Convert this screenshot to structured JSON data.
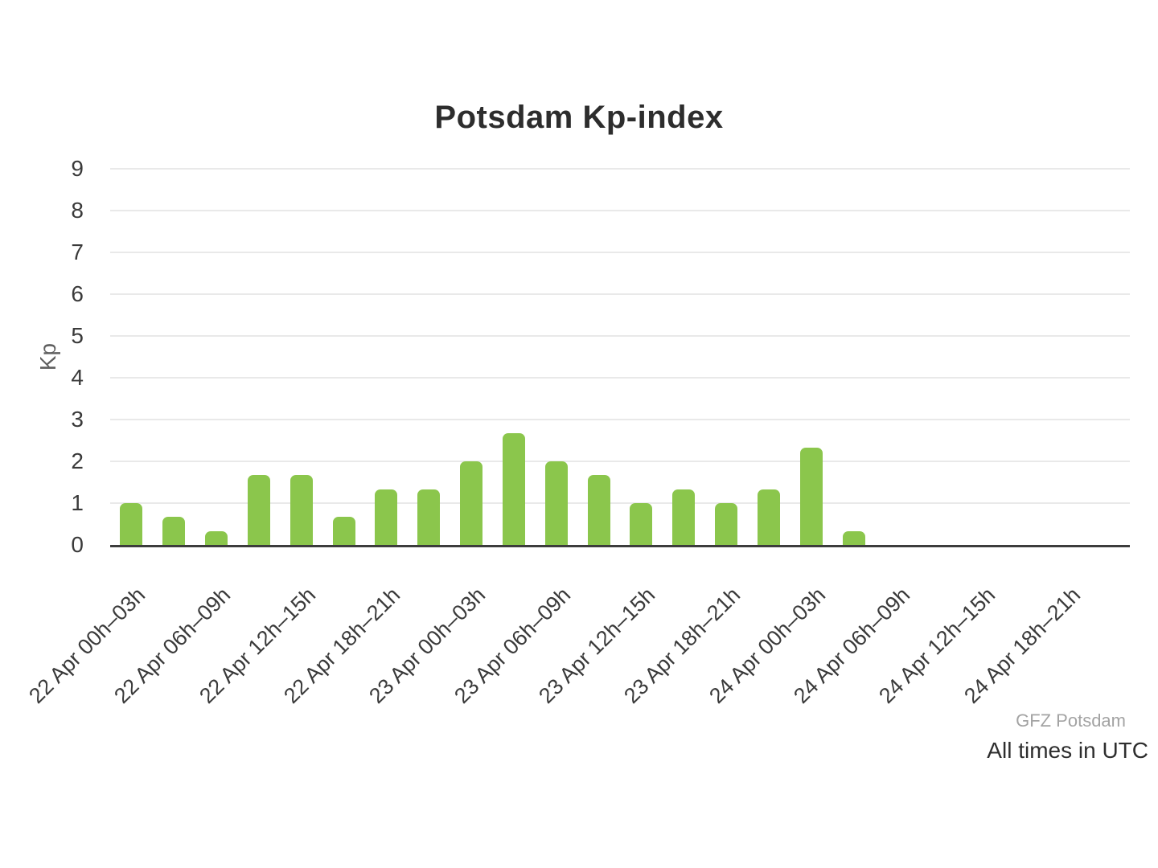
{
  "title": "Potsdam Kp-index",
  "footer": {
    "source": "GFZ Potsdam",
    "note": "All times in UTC"
  },
  "colors": {
    "bar": "#8bc64c",
    "grid": "#e9e9e9",
    "axis": "#3c3c3c",
    "tick_text": "#3a3a3a",
    "title_text": "#2d2d2d",
    "axis_title_text": "#5f5f5f",
    "source_text": "#a3a3a3",
    "note_text": "#2e2e2e"
  },
  "chart_data": {
    "type": "bar",
    "title": "Potsdam Kp-index",
    "xlabel": "",
    "ylabel": "Kp",
    "ylim": [
      0,
      9
    ],
    "yticks": [
      0,
      1,
      2,
      3,
      4,
      5,
      6,
      7,
      8,
      9
    ],
    "grid": true,
    "legend": false,
    "bar_color": "#8bc64c",
    "slot_count": 24,
    "values": [
      1,
      0.67,
      0.33,
      1.67,
      1.67,
      0.67,
      1.33,
      1.33,
      2,
      2.67,
      2,
      1.67,
      1,
      1.33,
      1,
      1.33,
      2.33,
      0.33,
      0,
      0,
      0,
      0,
      0,
      0
    ],
    "xtick_labels": [
      {
        "slot": 0,
        "label": "22 Apr 00h–03h"
      },
      {
        "slot": 2,
        "label": "22 Apr 06h–09h"
      },
      {
        "slot": 4,
        "label": "22 Apr 12h–15h"
      },
      {
        "slot": 6,
        "label": "22 Apr 18h–21h"
      },
      {
        "slot": 8,
        "label": "23 Apr 00h–03h"
      },
      {
        "slot": 10,
        "label": "23 Apr 06h–09h"
      },
      {
        "slot": 12,
        "label": "23 Apr 12h–15h"
      },
      {
        "slot": 14,
        "label": "23 Apr 18h–21h"
      },
      {
        "slot": 16,
        "label": "24 Apr 00h–03h"
      },
      {
        "slot": 18,
        "label": "24 Apr 06h–09h"
      },
      {
        "slot": 20,
        "label": "24 Apr 12h–15h"
      },
      {
        "slot": 22,
        "label": "24 Apr 18h–21h"
      }
    ],
    "annotations": [
      "GFZ Potsdam",
      "All times in UTC"
    ]
  }
}
